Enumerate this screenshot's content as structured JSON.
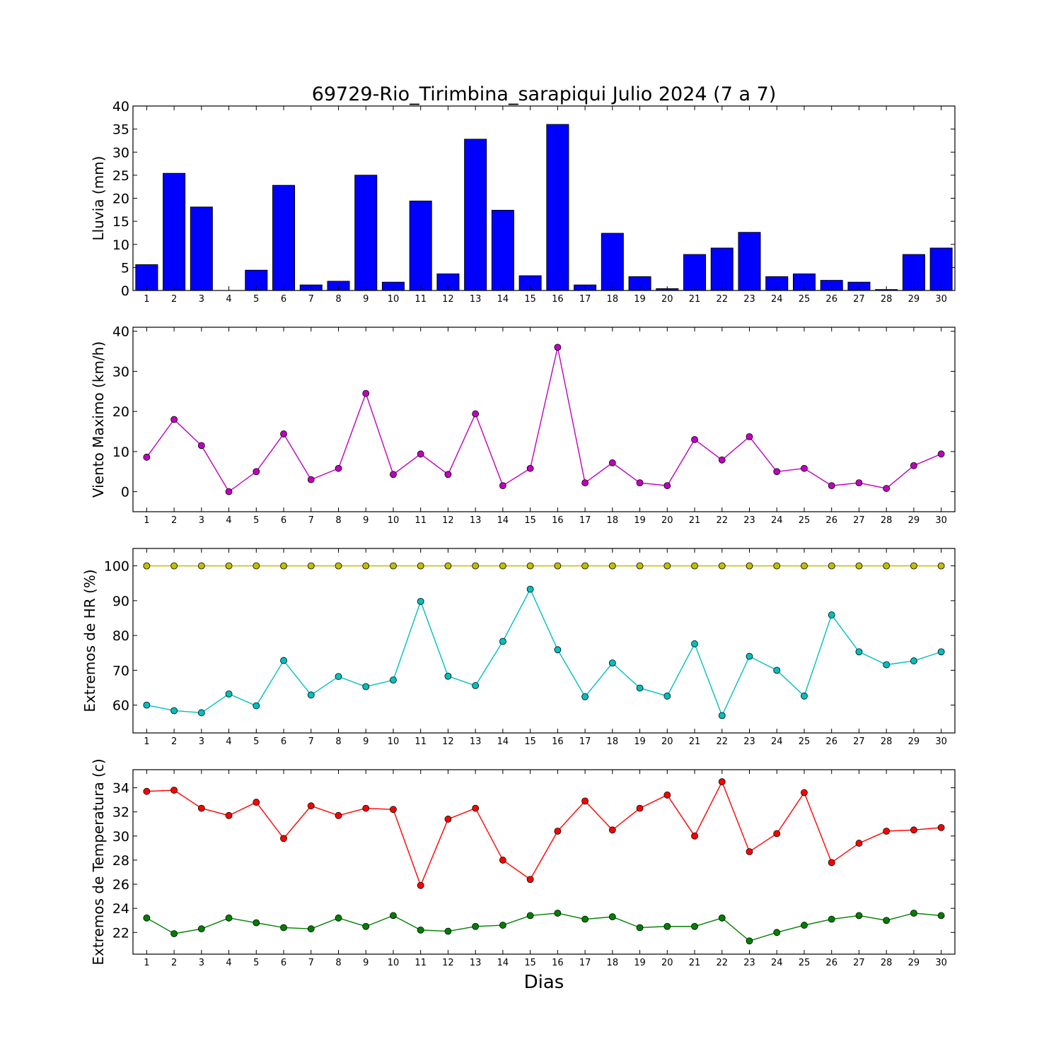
{
  "title": "69729-Rio_Tirimbina_sarapiqui Julio 2024  (7 a 7)",
  "xlabel": "Dias",
  "chart_data": [
    {
      "type": "bar",
      "ylabel": "Lluvia (mm)",
      "ylim": [
        0,
        40
      ],
      "yticks": [
        0,
        5,
        10,
        15,
        20,
        25,
        30,
        35,
        40
      ],
      "categories": [
        "1",
        "2",
        "3",
        "4",
        "5",
        "6",
        "7",
        "8",
        "9",
        "10",
        "11",
        "12",
        "13",
        "14",
        "15",
        "16",
        "17",
        "18",
        "19",
        "20",
        "21",
        "22",
        "23",
        "24",
        "25",
        "26",
        "27",
        "28",
        "29",
        "30"
      ],
      "series": [
        {
          "color": "#0000ff",
          "values": [
            5.6,
            25.4,
            18.1,
            0.0,
            4.4,
            22.8,
            1.2,
            2.0,
            25.0,
            1.8,
            19.4,
            3.6,
            32.8,
            17.4,
            3.2,
            36.0,
            1.2,
            12.4,
            3.0,
            0.4,
            7.8,
            9.2,
            12.6,
            3.0,
            3.6,
            2.2,
            1.8,
            0.2,
            7.8,
            9.2
          ]
        }
      ]
    },
    {
      "type": "line",
      "ylabel": "Viento Maximo (km/h)",
      "ylim": [
        -5,
        41
      ],
      "yticks": [
        0,
        10,
        20,
        30,
        40
      ],
      "categories": [
        "1",
        "2",
        "3",
        "4",
        "5",
        "6",
        "7",
        "8",
        "9",
        "10",
        "11",
        "12",
        "13",
        "14",
        "15",
        "16",
        "17",
        "18",
        "19",
        "20",
        "21",
        "22",
        "23",
        "24",
        "25",
        "26",
        "27",
        "28",
        "29",
        "30"
      ],
      "series": [
        {
          "color": "#bf00bf",
          "values": [
            8.6,
            18.0,
            11.5,
            0.0,
            5.0,
            14.4,
            3.0,
            5.8,
            24.5,
            4.3,
            9.4,
            4.3,
            19.4,
            1.5,
            5.8,
            36.0,
            2.2,
            7.2,
            2.2,
            1.5,
            13.0,
            7.9,
            13.7,
            5.0,
            5.8,
            1.5,
            2.2,
            0.8,
            6.5,
            9.4
          ]
        }
      ]
    },
    {
      "type": "line",
      "ylabel": "Extremos de HR (%)",
      "ylim": [
        52,
        105
      ],
      "yticks": [
        60,
        70,
        80,
        90,
        100
      ],
      "categories": [
        "1",
        "2",
        "3",
        "4",
        "5",
        "6",
        "7",
        "8",
        "9",
        "10",
        "11",
        "12",
        "13",
        "14",
        "15",
        "16",
        "17",
        "18",
        "19",
        "20",
        "21",
        "22",
        "23",
        "24",
        "25",
        "26",
        "27",
        "28",
        "29",
        "30"
      ],
      "series": [
        {
          "color": "#bfbf00",
          "values": [
            100,
            100,
            100,
            100,
            100,
            100,
            100,
            100,
            100,
            100,
            100,
            100,
            100,
            100,
            100,
            100,
            100,
            100,
            100,
            100,
            100,
            100,
            100,
            100,
            100,
            100,
            100,
            100,
            100,
            100
          ]
        },
        {
          "color": "#00bfbf",
          "values": [
            60.0,
            58.4,
            57.8,
            63.2,
            59.8,
            72.8,
            62.9,
            68.2,
            65.3,
            67.2,
            89.8,
            68.3,
            65.6,
            78.3,
            93.3,
            75.9,
            62.4,
            72.1,
            64.9,
            62.6,
            77.6,
            57.0,
            74.0,
            70.0,
            62.6,
            85.9,
            75.3,
            71.6,
            72.7,
            75.3
          ]
        }
      ]
    },
    {
      "type": "line",
      "ylabel": "Extremos de Temperatura (c)",
      "ylim": [
        20.2,
        35.5
      ],
      "yticks": [
        22,
        24,
        26,
        28,
        30,
        32,
        34
      ],
      "categories": [
        "1",
        "2",
        "3",
        "4",
        "5",
        "6",
        "7",
        "8",
        "9",
        "10",
        "11",
        "12",
        "13",
        "14",
        "15",
        "16",
        "17",
        "18",
        "19",
        "20",
        "21",
        "22",
        "23",
        "24",
        "25",
        "26",
        "27",
        "28",
        "29",
        "30"
      ],
      "series": [
        {
          "color": "#ff0000",
          "values": [
            33.7,
            33.8,
            32.3,
            31.7,
            32.8,
            29.8,
            32.5,
            31.7,
            32.3,
            32.2,
            25.9,
            31.4,
            32.3,
            28.0,
            26.4,
            30.4,
            32.9,
            30.5,
            32.3,
            33.4,
            30.0,
            34.5,
            28.7,
            30.2,
            33.6,
            27.8,
            29.4,
            30.4,
            30.5,
            30.7
          ]
        },
        {
          "color": "#008000",
          "values": [
            23.2,
            21.9,
            22.3,
            23.2,
            22.8,
            22.4,
            22.3,
            23.2,
            22.5,
            23.4,
            22.2,
            22.1,
            22.5,
            22.6,
            23.4,
            23.6,
            23.1,
            23.3,
            22.4,
            22.5,
            22.5,
            23.2,
            21.3,
            22.0,
            22.6,
            23.1,
            23.4,
            23.0,
            23.6,
            23.4
          ]
        }
      ]
    }
  ]
}
